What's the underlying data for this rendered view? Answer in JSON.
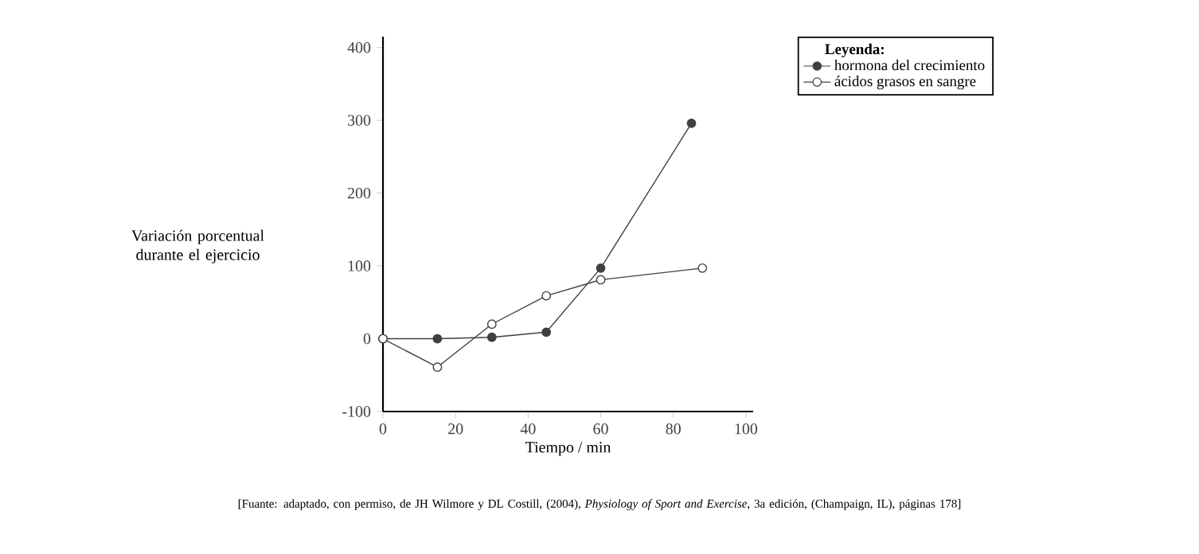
{
  "chart_data": {
    "type": "line",
    "xlabel": "Tiempo / min",
    "ylabel": "Variación porcentual durante el ejercicio",
    "legend_title": "Leyenda:",
    "legend": "top right",
    "xlim": [
      0,
      102
    ],
    "ylim": [
      -100,
      415
    ],
    "xticks": [
      0,
      20,
      40,
      60,
      80,
      100
    ],
    "yticks": [
      -100,
      0,
      100,
      200,
      300,
      400
    ],
    "series": [
      {
        "name": "hormona del crecimiento",
        "color": "#404040",
        "marker": "circle",
        "x": [
          0,
          15,
          30,
          45,
          60,
          85
        ],
        "values": [
          0,
          0,
          2,
          9,
          97,
          296
        ]
      },
      {
        "name": "ácidos grasos en sangre",
        "color": "#404040",
        "marker": "circle",
        "x": [
          0,
          15,
          30,
          45,
          60,
          88
        ],
        "values": [
          0,
          -39,
          20,
          59,
          81,
          97
        ]
      }
    ],
    "annotations": [
      "[Fuante: adaptado, con permiso, de JH Wilmore y DL Costill, (2004), *Physiology of Sport and Exercise*, 3a edición, (Champaign, IL), páginas 178]"
    ]
  }
}
